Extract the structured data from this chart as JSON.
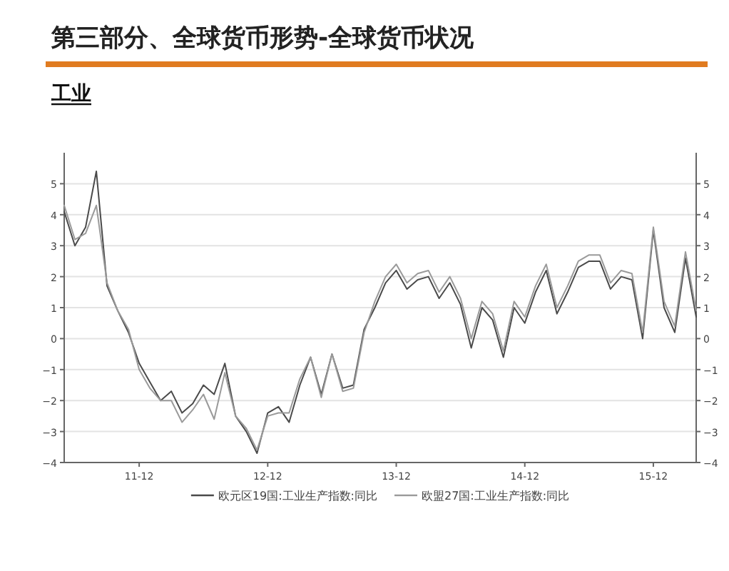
{
  "chart_data": {
    "type": "line",
    "title": "第三部分、全球货币形势-全球货币状况",
    "subtitle": "工业",
    "x": [
      "2011-05",
      "2011-06",
      "2011-07",
      "2011-08",
      "2011-09",
      "2011-10",
      "2011-11",
      "2011-12",
      "2012-01",
      "2012-02",
      "2012-03",
      "2012-04",
      "2012-05",
      "2012-06",
      "2012-07",
      "2012-08",
      "2012-09",
      "2012-10",
      "2012-11",
      "2012-12",
      "2013-01",
      "2013-02",
      "2013-03",
      "2013-04",
      "2013-05",
      "2013-06",
      "2013-07",
      "2013-08",
      "2013-09",
      "2013-10",
      "2013-11",
      "2013-12",
      "2014-01",
      "2014-02",
      "2014-03",
      "2014-04",
      "2014-05",
      "2014-06",
      "2014-07",
      "2014-08",
      "2014-09",
      "2014-10",
      "2014-11",
      "2014-12",
      "2015-01",
      "2015-02",
      "2015-03",
      "2015-04",
      "2015-05",
      "2015-06",
      "2015-07",
      "2015-08",
      "2015-09",
      "2015-10",
      "2015-11",
      "2015-12",
      "2016-01",
      "2016-02",
      "2016-03",
      "2016-04"
    ],
    "series": [
      {
        "name": "欧元区19国:工业生产指数:同比",
        "color": "#4a4a4a",
        "values": [
          4.1,
          3.0,
          3.6,
          5.4,
          1.7,
          0.9,
          0.2,
          -0.8,
          -1.4,
          -2.0,
          -1.7,
          -2.4,
          -2.1,
          -1.5,
          -1.8,
          -0.8,
          -2.5,
          -3.0,
          -3.7,
          -2.4,
          -2.2,
          -2.7,
          -1.5,
          -0.6,
          -1.8,
          -0.5,
          -1.6,
          -1.5,
          0.3,
          1.0,
          1.8,
          2.2,
          1.6,
          1.9,
          2.0,
          1.3,
          1.8,
          1.1,
          -0.3,
          1.0,
          0.6,
          -0.6,
          1.0,
          0.5,
          1.5,
          2.2,
          0.8,
          1.5,
          2.3,
          2.5,
          2.5,
          1.6,
          2.0,
          1.9,
          0.0,
          3.5,
          1.0,
          0.2,
          2.6,
          0.7
        ]
      },
      {
        "name": "欧盟27国:工业生产指数:同比",
        "color": "#9a9a9a",
        "values": [
          4.3,
          3.2,
          3.4,
          4.3,
          1.8,
          0.9,
          0.3,
          -1.0,
          -1.6,
          -2.0,
          -2.0,
          -2.7,
          -2.3,
          -1.8,
          -2.6,
          -1.1,
          -2.5,
          -2.9,
          -3.6,
          -2.5,
          -2.4,
          -2.4,
          -1.3,
          -0.6,
          -1.9,
          -0.5,
          -1.7,
          -1.6,
          0.2,
          1.2,
          2.0,
          2.4,
          1.8,
          2.1,
          2.2,
          1.5,
          2.0,
          1.3,
          0.0,
          1.2,
          0.8,
          -0.4,
          1.2,
          0.7,
          1.7,
          2.4,
          1.0,
          1.7,
          2.5,
          2.7,
          2.7,
          1.8,
          2.2,
          2.1,
          0.2,
          3.6,
          1.2,
          0.4,
          2.8,
          0.9
        ]
      }
    ],
    "xlim": [
      "2011-05",
      "2016-04"
    ],
    "xticks": [
      {
        "value": "2011-12",
        "label": "11-12"
      },
      {
        "value": "2012-12",
        "label": "12-12"
      },
      {
        "value": "2013-12",
        "label": "13-12"
      },
      {
        "value": "2014-12",
        "label": "14-12"
      },
      {
        "value": "2015-12",
        "label": "15-12"
      }
    ],
    "ylim": [
      -4,
      6
    ],
    "yticks": [
      -4,
      -3,
      -2,
      -1,
      0,
      1,
      2,
      3,
      4,
      5
    ],
    "y2lim": [
      -4,
      6
    ],
    "y2ticks": [
      -4,
      -3,
      -2,
      -1,
      0,
      1,
      2,
      3,
      4,
      5
    ],
    "grid": "y",
    "legend": "bottom",
    "marker": "none",
    "line_style": "solid"
  }
}
